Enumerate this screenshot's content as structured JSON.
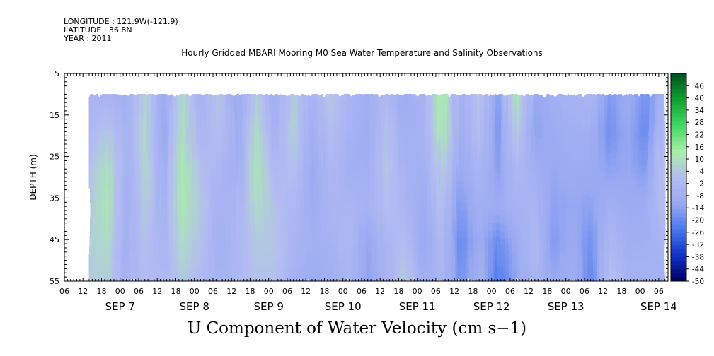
{
  "header": {
    "longitude": "LONGITUDE : 121.9W(-121.9)",
    "latitude": "LATITUDE : 36.8N",
    "year": "YEAR : 2011",
    "title": "Hourly Gridded MBARI Mooring M0 Sea Water Temperature and Salinity Observations"
  },
  "caption": "U Component of Water Velocity (cm s−1)",
  "chart_data": {
    "type": "heatmap",
    "title": "Hourly Gridded MBARI Mooring M0 Sea Water Temperature and Salinity Observations",
    "ylabel": "DEPTH (m)",
    "xlabel": "U Component of Water Velocity (cm s−1)",
    "y_ticks": [
      "5",
      "15",
      "25",
      "35",
      "45",
      "55"
    ],
    "ylim": [
      55,
      5
    ],
    "x_hour_ticks": [
      "06",
      "12",
      "18",
      "00",
      "06",
      "12",
      "18",
      "00",
      "06",
      "12",
      "18",
      "00",
      "06",
      "12",
      "18",
      "00",
      "06",
      "12",
      "18",
      "00",
      "06",
      "12",
      "18",
      "00",
      "06",
      "12",
      "18",
      "00",
      "06",
      "12",
      "18",
      "00",
      "06"
    ],
    "x_day_labels": [
      "SEP  7",
      "SEP  8",
      "SEP  9",
      "SEP 10",
      "SEP 11",
      "SEP 12",
      "SEP 13",
      "SEP 14"
    ],
    "xlim_hours": [
      "2011-09-06 06:00",
      "2011-09-14 09:00"
    ],
    "data_start": "2011-09-06 14:00",
    "data_end": "2011-09-14 08:00",
    "data_depth_range_m": [
      10,
      55
    ],
    "colorbar_ticks": [
      "46",
      "40",
      "34",
      "28",
      "22",
      "16",
      "10",
      "4",
      "-2",
      "-8",
      "-14",
      "-20",
      "-26",
      "-32",
      "-38",
      "-44",
      "-50"
    ],
    "colorbar_range": [
      -50,
      52
    ],
    "colorbar_colors_low_to_high": [
      "#00005e",
      "#1030c8",
      "#4a78ee",
      "#9aaaf2",
      "#b4bcf2",
      "#a8f0a8",
      "#40d860",
      "#10a030",
      "#005020"
    ],
    "profiles": [
      {
        "time": "2011-09-06 14:00",
        "u": [
          -4,
          -2,
          2,
          4,
          6,
          4
        ]
      },
      {
        "time": "2011-09-06 20:00",
        "u": [
          -6,
          4,
          10,
          12,
          8,
          6
        ]
      },
      {
        "time": "2011-09-07 02:00",
        "u": [
          -8,
          -6,
          -6,
          -8,
          -8,
          -6
        ]
      },
      {
        "time": "2011-09-07 08:00",
        "u": [
          6,
          8,
          6,
          4,
          2,
          0
        ]
      },
      {
        "time": "2011-09-07 14:00",
        "u": [
          -10,
          -12,
          -8,
          -6,
          -4,
          -2
        ]
      },
      {
        "time": "2011-09-07 20:00",
        "u": [
          8,
          10,
          12,
          12,
          8,
          4
        ]
      },
      {
        "time": "2011-09-08 02:00",
        "u": [
          -6,
          -4,
          2,
          4,
          2,
          0
        ]
      },
      {
        "time": "2011-09-08 08:00",
        "u": [
          4,
          2,
          -4,
          -6,
          -8,
          -6
        ]
      },
      {
        "time": "2011-09-08 14:00",
        "u": [
          -12,
          -10,
          -8,
          -4,
          -2,
          -2
        ]
      },
      {
        "time": "2011-09-08 20:00",
        "u": [
          6,
          8,
          10,
          8,
          4,
          2
        ]
      },
      {
        "time": "2011-09-09 02:00",
        "u": [
          -8,
          -6,
          -2,
          2,
          4,
          2
        ]
      },
      {
        "time": "2011-09-09 08:00",
        "u": [
          4,
          6,
          2,
          -2,
          -4,
          -6
        ]
      },
      {
        "time": "2011-09-09 14:00",
        "u": [
          -6,
          -10,
          -12,
          -10,
          -8,
          -10
        ]
      },
      {
        "time": "2011-09-09 20:00",
        "u": [
          4,
          2,
          -2,
          -4,
          -6,
          -8
        ]
      },
      {
        "time": "2011-09-10 02:00",
        "u": [
          -4,
          -6,
          -8,
          -4,
          -2,
          -4
        ]
      },
      {
        "time": "2011-09-10 08:00",
        "u": [
          -8,
          -10,
          -8,
          -6,
          -12,
          -14
        ]
      },
      {
        "time": "2011-09-10 14:00",
        "u": [
          -2,
          2,
          4,
          2,
          -4,
          -6
        ]
      },
      {
        "time": "2011-09-10 20:00",
        "u": [
          -10,
          -8,
          -6,
          -4,
          2,
          6
        ]
      },
      {
        "time": "2011-09-11 02:00",
        "u": [
          -4,
          -6,
          -8,
          -10,
          -12,
          -8
        ]
      },
      {
        "time": "2011-09-11 08:00",
        "u": [
          14,
          12,
          6,
          2,
          -2,
          -4
        ]
      },
      {
        "time": "2011-09-11 14:00",
        "u": [
          -8,
          -10,
          -12,
          -16,
          -20,
          -18
        ]
      },
      {
        "time": "2011-09-11 20:00",
        "u": [
          4,
          2,
          -4,
          -8,
          -10,
          -6
        ]
      },
      {
        "time": "2011-09-12 02:00",
        "u": [
          -14,
          -16,
          -14,
          -10,
          -20,
          -24
        ]
      },
      {
        "time": "2011-09-12 08:00",
        "u": [
          12,
          6,
          -2,
          -6,
          -10,
          -12
        ]
      },
      {
        "time": "2011-09-12 14:00",
        "u": [
          -12,
          -14,
          -8,
          -4,
          -2,
          -4
        ]
      },
      {
        "time": "2011-09-12 20:00",
        "u": [
          -8,
          -10,
          -12,
          -14,
          -16,
          -12
        ]
      },
      {
        "time": "2011-09-13 02:00",
        "u": [
          -6,
          -8,
          -10,
          -12,
          -10,
          -8
        ]
      },
      {
        "time": "2011-09-13 08:00",
        "u": [
          -4,
          -8,
          -10,
          -14,
          -18,
          -20
        ]
      },
      {
        "time": "2011-09-13 14:00",
        "u": [
          -16,
          -18,
          -14,
          -8,
          -2,
          2
        ]
      },
      {
        "time": "2011-09-13 20:00",
        "u": [
          -10,
          -12,
          -12,
          -10,
          -8,
          -6
        ]
      },
      {
        "time": "2011-09-14 02:00",
        "u": [
          -18,
          -20,
          -16,
          -10,
          -8,
          -6
        ]
      },
      {
        "time": "2011-09-14 08:00",
        "u": [
          -4,
          2,
          4,
          2,
          -4,
          -8
        ]
      }
    ]
  }
}
